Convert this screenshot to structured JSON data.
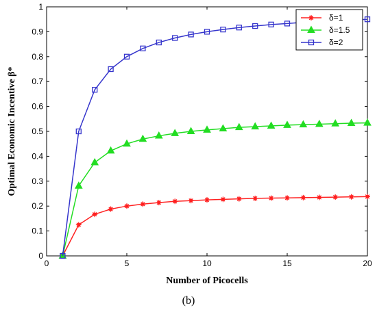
{
  "chart_data": {
    "type": "line",
    "xlabel": "Number of Picocells",
    "ylabel": "Optimal Economic Incentive β*",
    "caption": "(b)",
    "xlim": [
      0,
      20
    ],
    "ylim": [
      0,
      1
    ],
    "xticks": [
      0,
      5,
      10,
      15,
      20
    ],
    "yticks": [
      0,
      0.1,
      0.2,
      0.3,
      0.4,
      0.5,
      0.6,
      0.7,
      0.8,
      0.9,
      1
    ],
    "ytick_labels": [
      "0",
      "0.1",
      "0.2",
      "0.3",
      "0.4",
      "0.5",
      "0.6",
      "0.7",
      "0.8",
      "0.9",
      "1"
    ],
    "xtick_labels": [
      "0",
      "5",
      "10",
      "15",
      "20"
    ],
    "grid": false,
    "legend_position": "top-right",
    "x": [
      1,
      2,
      3,
      4,
      5,
      6,
      7,
      8,
      9,
      10,
      11,
      12,
      13,
      14,
      15,
      16,
      17,
      18,
      19,
      20
    ],
    "series": [
      {
        "name": "δ=1",
        "color": "#ff2020",
        "marker": "asterisk",
        "values": [
          0.0,
          0.125,
          0.167,
          0.188,
          0.2,
          0.208,
          0.214,
          0.219,
          0.222,
          0.225,
          0.227,
          0.229,
          0.231,
          0.232,
          0.233,
          0.234,
          0.235,
          0.236,
          0.237,
          0.238
        ]
      },
      {
        "name": "δ=1.5",
        "color": "#22dd22",
        "marker": "triangle",
        "values": [
          0.0,
          0.281,
          0.375,
          0.422,
          0.45,
          0.469,
          0.482,
          0.492,
          0.5,
          0.506,
          0.511,
          0.516,
          0.519,
          0.522,
          0.525,
          0.527,
          0.529,
          0.531,
          0.533,
          0.534
        ]
      },
      {
        "name": "δ=2",
        "color": "#3535cc",
        "marker": "square",
        "values": [
          0.0,
          0.5,
          0.667,
          0.75,
          0.8,
          0.833,
          0.857,
          0.875,
          0.889,
          0.9,
          0.909,
          0.917,
          0.923,
          0.929,
          0.933,
          0.938,
          0.941,
          0.944,
          0.947,
          0.95
        ]
      }
    ]
  }
}
